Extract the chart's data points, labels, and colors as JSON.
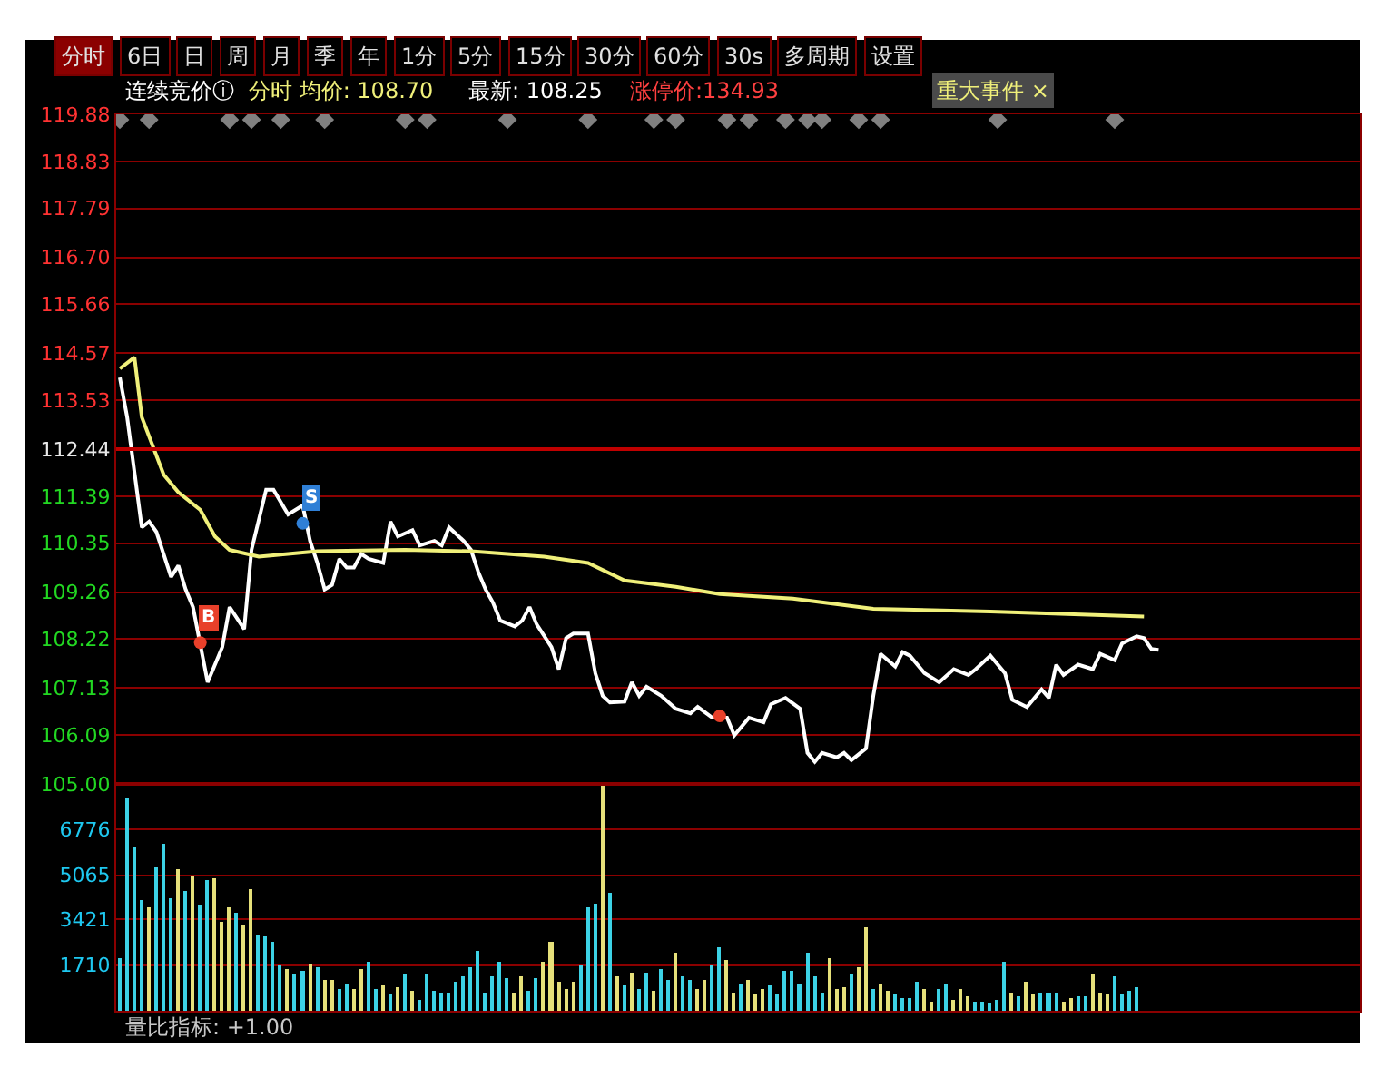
{
  "chart_data": [
    {
      "type": "other",
      "annotations": [
        "分时",
        "6日",
        "日",
        "周",
        "月",
        "季",
        "年",
        "1分",
        "5分",
        "15分",
        "30分",
        "60分",
        "30s",
        "多周期",
        "设置"
      ]
    },
    {
      "type": "line",
      "tick_labels": "y",
      "grid": "y",
      "annotations": [
        "连续竞价ⓘ",
        "分时 均价: 108.70",
        "最新: 108.25",
        "涨停价:134.93",
        "重大事件 ×"
      ],
      "categories": [
        null,
        null,
        null,
        null,
        null,
        null,
        null,
        null,
        null,
        null,
        null,
        null,
        null,
        null,
        null,
        null,
        null,
        null,
        null,
        null,
        null,
        null,
        null,
        null,
        null,
        null,
        null,
        null,
        null,
        null,
        null,
        null,
        null,
        null,
        null,
        null,
        null,
        null,
        null,
        null,
        null,
        null,
        null,
        null,
        null,
        null,
        null,
        null,
        null,
        null,
        null,
        null,
        null,
        null,
        null,
        null,
        null,
        null,
        null,
        null,
        null,
        null,
        null,
        null,
        null,
        null,
        null,
        null,
        null,
        null,
        null,
        null,
        null,
        null,
        null,
        null,
        null,
        null,
        null,
        null,
        null,
        null,
        null,
        null,
        null,
        null,
        null,
        null,
        null,
        null,
        null,
        null,
        null,
        null,
        null,
        null,
        null,
        null,
        null,
        null,
        null,
        null,
        null,
        null,
        null,
        null,
        null,
        null,
        null,
        null,
        null,
        null,
        null,
        null,
        null,
        null,
        null,
        null,
        null,
        null,
        null,
        null,
        null,
        null,
        null,
        null,
        null,
        null,
        null,
        null,
        null,
        null,
        null,
        null,
        null,
        null,
        null,
        null,
        null,
        null,
        null,
        null,
        null,
        null,
        null,
        null,
        null,
        null,
        null,
        null,
        null,
        null,
        null,
        null,
        null,
        null,
        null,
        null,
        null,
        null,
        null,
        null,
        null,
        null,
        null,
        null,
        null,
        null,
        null,
        null
      ],
      "ylim": [
        105.0,
        119.88
      ],
      "yticks": [
        119.88,
        118.83,
        117.79,
        {
          "value": 116.7,
          "label": "116.70"
        },
        115.66,
        114.57,
        113.53,
        112.44,
        111.39,
        110.35,
        109.26,
        108.22,
        107.13,
        106.09,
        {
          "value": 105.0,
          "label": "105.00"
        }
      ],
      "ref_lines": [
        {
          "axis": "y",
          "value": 112.44,
          "color": "#c00000"
        }
      ],
      "series": [
        {
          "type": "line",
          "color": "#ffffff",
          "values": [
            114.03,
            113.15,
            null,
            110.7,
            110.83,
            110.6,
            null,
            109.6,
            109.85,
            109.32,
            108.93,
            null,
            107.26,
            null,
            108.04,
            108.93,
            null,
            108.44,
            110.2,
            null,
            111.54,
            111.54,
            null,
            110.99,
            null,
            111.19,
            110.4,
            109.91,
            109.32,
            109.42,
            110.0,
            109.81,
            109.81,
            110.11,
            110.0,
            null,
            109.91,
            110.83,
            110.5,
            null,
            110.64,
            110.3,
            null,
            110.4,
            110.3,
            110.7,
            null,
            110.4,
            110.2,
            109.71,
            109.32,
            109.03,
            108.63,
            null,
            108.5,
            108.63,
            108.93,
            108.54,
            null,
            108.04,
            107.55,
            108.24,
            108.34,
            null,
            108.34,
            107.46,
            106.96,
            106.81,
            null,
            106.83,
            107.26,
            106.96,
            107.16,
            null,
            106.96,
            null,
            106.67,
            null,
            106.57,
            106.71,
            null,
            106.47,
            null,
            106.47,
            106.08,
            null,
            106.47,
            null,
            106.37,
            106.77,
            null,
            106.91,
            null,
            106.67,
            105.69,
            105.49,
            105.69,
            null,
            105.59,
            105.69,
            105.53,
            null,
            105.79,
            106.96,
            107.89,
            null,
            107.61,
            107.93,
            107.85,
            null,
            107.46,
            null,
            107.26,
            null,
            107.55,
            null,
            107.42,
            107.55,
            null,
            107.85,
            null,
            107.46,
            106.87,
            null,
            106.71,
            null,
            107.1,
            106.91,
            107.65,
            107.42,
            null,
            107.65,
            null,
            107.55,
            107.89,
            null,
            107.75,
            108.12,
            null,
            108.28,
            108.24,
            108.0,
            107.98,
            null,
            null,
            null,
            null,
            null,
            null,
            null,
            null,
            null,
            null,
            null,
            null,
            null,
            null,
            null,
            null,
            null,
            null,
            null,
            null,
            null,
            null,
            null,
            null,
            null,
            null,
            null
          ]
        },
        {
          "type": "line",
          "color": "#f0f07a",
          "values": [
            114.23,
            null,
            114.48,
            113.15,
            null,
            null,
            111.87,
            null,
            111.48,
            null,
            null,
            111.09,
            null,
            110.5,
            null,
            110.2,
            null,
            null,
            null,
            110.05,
            null,
            null,
            null,
            null,
            null,
            null,
            null,
            110.17,
            null,
            null,
            null,
            null,
            null,
            null,
            null,
            null,
            null,
            null,
            null,
            110.2,
            null,
            null,
            null,
            null,
            null,
            null,
            null,
            null,
            110.17,
            null,
            null,
            null,
            null,
            null,
            null,
            null,
            null,
            null,
            110.05,
            null,
            null,
            null,
            null,
            null,
            109.91,
            null,
            null,
            null,
            null,
            109.52,
            null,
            null,
            null,
            null,
            null,
            null,
            109.38,
            null,
            null,
            null,
            null,
            null,
            109.22,
            null,
            null,
            null,
            null,
            null,
            null,
            null,
            null,
            null,
            109.12,
            null,
            null,
            null,
            null,
            null,
            null,
            null,
            null,
            null,
            null,
            108.89,
            null,
            null,
            null,
            null,
            null,
            null,
            null,
            null,
            null,
            null,
            null,
            null,
            null,
            null,
            null,
            108.83,
            null,
            null,
            null,
            null,
            null,
            null,
            null,
            null,
            null,
            null,
            null,
            null,
            null,
            null,
            null,
            null,
            null,
            null,
            null,
            null,
            108.72,
            null,
            null,
            null,
            null,
            null,
            null,
            null,
            null,
            null,
            null,
            null,
            null,
            null,
            null,
            null,
            null,
            null,
            null,
            null,
            null,
            null,
            null,
            null,
            null,
            null,
            null,
            null,
            null,
            null
          ]
        },
        {
          "type": "scatter",
          "marker": "diamond",
          "color": "#808080",
          "values": [
            119.76,
            null,
            null,
            null,
            119.76,
            null,
            null,
            null,
            null,
            null,
            null,
            null,
            null,
            null,
            null,
            119.76,
            null,
            null,
            119.76,
            null,
            null,
            null,
            119.76,
            null,
            null,
            null,
            null,
            null,
            119.76,
            null,
            null,
            null,
            null,
            null,
            null,
            null,
            null,
            null,
            null,
            119.76,
            null,
            null,
            119.76,
            null,
            null,
            null,
            null,
            null,
            null,
            null,
            null,
            null,
            null,
            119.76,
            null,
            null,
            null,
            null,
            null,
            null,
            null,
            null,
            null,
            null,
            119.76,
            null,
            null,
            null,
            null,
            null,
            null,
            null,
            null,
            119.76,
            null,
            null,
            119.76,
            null,
            null,
            null,
            null,
            null,
            null,
            119.76,
            null,
            null,
            119.76,
            null,
            null,
            null,
            null,
            119.76,
            null,
            null,
            119.76,
            null,
            119.76,
            null,
            null,
            null,
            null,
            119.76,
            null,
            null,
            119.76,
            null,
            null,
            null,
            null,
            null,
            null,
            null,
            null,
            null,
            null,
            null,
            null,
            null,
            null,
            null,
            119.76,
            null,
            null,
            null,
            null,
            null,
            null,
            null,
            null,
            null,
            null,
            null,
            null,
            null,
            null,
            null,
            119.76,
            null,
            null,
            null,
            null,
            null,
            null,
            null,
            null,
            null,
            null,
            null,
            null,
            null,
            null,
            null,
            null,
            null,
            null,
            null,
            null,
            null,
            null,
            null,
            null,
            null,
            null,
            null,
            null,
            null,
            null,
            null,
            null,
            null
          ]
        },
        {
          "type": "scatter",
          "marker": "circle",
          "color": "#e8402a",
          "values": [
            null,
            null,
            null,
            null,
            null,
            null,
            null,
            null,
            null,
            null,
            null,
            108.14,
            null,
            null,
            null,
            null,
            null,
            null,
            null,
            null,
            null,
            null,
            null,
            null,
            null,
            null,
            null,
            null,
            null,
            null,
            null,
            null,
            null,
            null,
            null,
            null,
            null,
            null,
            null,
            null,
            null,
            null,
            null,
            null,
            null,
            null,
            null,
            null,
            null,
            null,
            null,
            null,
            null,
            null,
            null,
            null,
            null,
            null,
            null,
            null,
            null,
            null,
            null,
            null,
            null,
            null,
            null,
            null,
            null,
            null,
            null,
            null,
            null,
            null,
            null,
            null,
            null,
            null,
            null,
            null,
            null,
            null,
            null,
            null,
            null,
            null,
            null,
            null,
            null,
            null,
            null,
            null,
            null,
            null,
            null,
            null,
            null,
            null,
            null,
            null,
            null,
            null,
            null,
            null,
            null,
            null,
            null,
            null,
            null,
            null,
            null,
            null,
            null,
            null,
            null,
            null,
            null,
            null,
            null,
            null,
            null,
            null,
            null,
            null,
            null,
            null,
            null,
            null,
            null,
            null,
            null,
            null,
            null,
            null,
            null,
            null,
            null,
            null,
            null,
            null,
            null,
            null,
            null,
            null,
            null,
            null,
            null,
            null,
            null,
            null,
            null,
            null,
            null,
            null,
            null,
            null,
            null,
            null,
            null,
            null,
            null,
            null,
            null,
            null,
            null,
            null,
            null,
            null,
            null,
            null
          ],
          "value_labels": [
            null,
            null,
            null,
            null,
            null,
            null,
            null,
            null,
            null,
            null,
            null,
            "B",
            null,
            null,
            null,
            null,
            null,
            null,
            null,
            null,
            null,
            null,
            null,
            null,
            null,
            null,
            null,
            null,
            null,
            null,
            null,
            null,
            null,
            null,
            null,
            null,
            null,
            null,
            null,
            null,
            null,
            null,
            null,
            null,
            null,
            null,
            null,
            null,
            null,
            null,
            null,
            null,
            null,
            null,
            null,
            null,
            null,
            null,
            null,
            null,
            null,
            null,
            null,
            null,
            null,
            null,
            null,
            null,
            null,
            null,
            null,
            null,
            null,
            null,
            null,
            null,
            null,
            null,
            null,
            null,
            null,
            null,
            null,
            null,
            null,
            null,
            null,
            null,
            null,
            null,
            null,
            null,
            null,
            null,
            null,
            null,
            null,
            null,
            null,
            null,
            null,
            null,
            null,
            null,
            null,
            null,
            null,
            null,
            null,
            null,
            null,
            null,
            null,
            null,
            null,
            null,
            null,
            null,
            null,
            null,
            null,
            null,
            null,
            null,
            null,
            null,
            null,
            null,
            null,
            null,
            null,
            null,
            null,
            null,
            null,
            null,
            null,
            null,
            null,
            null,
            null,
            null,
            null,
            null,
            null,
            null,
            null,
            null,
            null,
            null,
            null,
            null,
            null,
            null,
            null,
            null,
            null,
            null,
            null,
            null,
            null,
            null,
            null,
            null,
            null,
            null,
            null,
            null,
            null,
            null
          ]
        },
        {
          "type": "scatter",
          "marker": "circle",
          "color": "#2f7fd6",
          "values": [
            null,
            null,
            null,
            null,
            null,
            null,
            null,
            null,
            null,
            null,
            null,
            null,
            null,
            null,
            null,
            null,
            null,
            null,
            null,
            null,
            null,
            null,
            null,
            null,
            null,
            110.79,
            null,
            null,
            null,
            null,
            null,
            null,
            null,
            null,
            null,
            null,
            null,
            null,
            null,
            null,
            null,
            null,
            null,
            null,
            null,
            null,
            null,
            null,
            null,
            null,
            null,
            null,
            null,
            null,
            null,
            null,
            null,
            null,
            null,
            null,
            null,
            null,
            null,
            null,
            null,
            null,
            null,
            null,
            null,
            null,
            null,
            null,
            null,
            null,
            null,
            null,
            null,
            null,
            null,
            null,
            null,
            null,
            null,
            null,
            null,
            null,
            null,
            null,
            null,
            null,
            null,
            null,
            null,
            null,
            null,
            null,
            null,
            null,
            null,
            null,
            null,
            null,
            null,
            null,
            null,
            null,
            null,
            null,
            null,
            null,
            null,
            null,
            null,
            null,
            null,
            null,
            null,
            null,
            null,
            null,
            null,
            null,
            null,
            null,
            null,
            null,
            null,
            null,
            null,
            null,
            null,
            null,
            null,
            null,
            null,
            null,
            null,
            null,
            null,
            null,
            null,
            null,
            null,
            null,
            null,
            null,
            null,
            null,
            null,
            null,
            null,
            null,
            null,
            null,
            null,
            null,
            null,
            null,
            null,
            null,
            null,
            null,
            null,
            null,
            null,
            null,
            null,
            null,
            null,
            null
          ],
          "value_labels": [
            null,
            null,
            null,
            null,
            null,
            null,
            null,
            null,
            null,
            null,
            null,
            null,
            null,
            null,
            null,
            null,
            null,
            null,
            null,
            null,
            null,
            null,
            null,
            null,
            null,
            "S",
            null,
            null,
            null,
            null,
            null,
            null,
            null,
            null,
            null,
            null,
            null,
            null,
            null,
            null,
            null,
            null,
            null,
            null,
            null,
            null,
            null,
            null,
            null,
            null,
            null,
            null,
            null,
            null,
            null,
            null,
            null,
            null,
            null,
            null,
            null,
            null,
            null,
            null,
            null,
            null,
            null,
            null,
            null,
            null,
            null,
            null,
            null,
            null,
            null,
            null,
            null,
            null,
            null,
            null,
            null,
            null,
            null,
            null,
            null,
            null,
            null,
            null,
            null,
            null,
            null,
            null,
            null,
            null,
            null,
            null,
            null,
            null,
            null,
            null,
            null,
            null,
            null,
            null,
            null,
            null,
            null,
            null,
            null,
            null,
            null,
            null,
            null,
            null,
            null,
            null,
            null,
            null,
            null,
            null,
            null,
            null,
            null,
            null,
            null,
            null,
            null,
            null,
            null,
            null,
            null,
            null,
            null,
            null,
            null,
            null,
            null,
            null,
            null,
            null,
            null,
            null,
            null,
            null,
            null,
            null,
            null,
            null,
            null,
            null,
            null,
            null,
            null,
            null,
            null,
            null,
            null,
            null,
            null,
            null,
            null,
            null,
            null,
            null,
            null,
            null,
            null,
            null,
            null,
            null
          ]
        },
        {
          "type": "scatter",
          "marker": "circle",
          "color": "#e8402a",
          "values": [
            null,
            null,
            null,
            null,
            null,
            null,
            null,
            null,
            null,
            null,
            null,
            null,
            null,
            null,
            null,
            null,
            null,
            null,
            null,
            null,
            null,
            null,
            null,
            null,
            null,
            null,
            null,
            null,
            null,
            null,
            null,
            null,
            null,
            null,
            null,
            null,
            null,
            null,
            null,
            null,
            null,
            null,
            null,
            null,
            null,
            null,
            null,
            null,
            null,
            null,
            null,
            null,
            null,
            null,
            null,
            null,
            null,
            null,
            null,
            null,
            null,
            null,
            null,
            null,
            null,
            null,
            null,
            null,
            null,
            null,
            null,
            null,
            null,
            null,
            null,
            null,
            null,
            null,
            null,
            null,
            null,
            null,
            106.51,
            null,
            null,
            null,
            null,
            null,
            null,
            null,
            null,
            null,
            null,
            null,
            null,
            null,
            null,
            null,
            null,
            null,
            null,
            null,
            null,
            null,
            null,
            null,
            null,
            null,
            null,
            null,
            null,
            null,
            null,
            null,
            null,
            null,
            null,
            null,
            null,
            null,
            null,
            null,
            null,
            null,
            null,
            null,
            null,
            null,
            null,
            null,
            null,
            null,
            null,
            null,
            null,
            null,
            null,
            null,
            null,
            null,
            null,
            null,
            null,
            null,
            null,
            null,
            null,
            null,
            null,
            null,
            null,
            null,
            null,
            null,
            null,
            null,
            null,
            null,
            null,
            null,
            null,
            null,
            null,
            null,
            null,
            null,
            null,
            null,
            null,
            null
          ]
        }
      ]
    },
    {
      "type": "bar",
      "tick_labels": "y",
      "grid": "y",
      "annotations": [
        "量比指标: +1.00"
      ],
      "categories": [
        null,
        null,
        null,
        null,
        null,
        null,
        null,
        null,
        null,
        null,
        null,
        null,
        null,
        null,
        null,
        null,
        null,
        null,
        null,
        null,
        null,
        null,
        null,
        null,
        null,
        null,
        null,
        null,
        null,
        null,
        null,
        null,
        null,
        null,
        null,
        null,
        null,
        null,
        null,
        null,
        null,
        null,
        null,
        null,
        null,
        null,
        null,
        null,
        null,
        null,
        null,
        null,
        null,
        null,
        null,
        null,
        null,
        null,
        null,
        null,
        null,
        null,
        null,
        null,
        null,
        null,
        null,
        null,
        null,
        null,
        null,
        null,
        null,
        null,
        null,
        null,
        null,
        null,
        null,
        null,
        null,
        null,
        null,
        null,
        null,
        null,
        null,
        null,
        null,
        null,
        null,
        null,
        null,
        null,
        null,
        null,
        null,
        null,
        null,
        null,
        null,
        null,
        null,
        null,
        null,
        null,
        null,
        null,
        null,
        null,
        null,
        null,
        null,
        null,
        null,
        null,
        null,
        null,
        null,
        null,
        null,
        null,
        null,
        null,
        null,
        null,
        null,
        null,
        null,
        null,
        null,
        null,
        null,
        null,
        null,
        null,
        null,
        null,
        null,
        null,
        null,
        null,
        null,
        null,
        null,
        null,
        null,
        null,
        null,
        null,
        null,
        null,
        null,
        null,
        null,
        null,
        null,
        null,
        null,
        null,
        null,
        null,
        null,
        null,
        null,
        null,
        null,
        null,
        null,
        null
      ],
      "ylim": [
        0,
        8480
      ],
      "yticks": [
        1710,
        3421,
        5065,
        6776
      ],
      "values": [
        1940,
        7970,
        6100,
        4120,
        3850,
        5390,
        6230,
        4220,
        5260,
        4490,
        4990,
        3950,
        4860,
        4920,
        3350,
        3890,
        3690,
        3220,
        4560,
        2880,
        2810,
        2580,
        1710,
        1580,
        1340,
        1510,
        1740,
        1610,
        1140,
        1140,
        800,
        1010,
        840,
        1580,
        1840,
        800,
        940,
        600,
        870,
        1340,
        740,
        440,
        1340,
        770,
        700,
        670,
        1070,
        1310,
        1610,
        2250,
        670,
        1270,
        1840,
        1240,
        670,
        1270,
        740,
        1240,
        1840,
        2580,
        1070,
        840,
        1070,
        1710,
        3890,
        4020,
        8400,
        4390,
        1270,
        940,
        1440,
        840,
        1410,
        740,
        1540,
        1170,
        2180,
        1270,
        1170,
        840,
        1140,
        1710,
        2380,
        1910,
        670,
        1010,
        1140,
        600,
        800,
        940,
        600,
        1470,
        1470,
        1010,
        2180,
        1270,
        670,
        1940,
        800,
        870,
        1370,
        1610,
        3150,
        800,
        1010,
        770,
        600,
        500,
        470,
        1070,
        840,
        340,
        840,
        1040,
        400,
        840,
        540,
        370,
        340,
        270,
        400,
        1840,
        700,
        570,
        1070,
        600,
        670,
        670,
        670,
        340,
        470,
        540,
        540,
        1340,
        670,
        600,
        1270,
        600,
        740,
        870,
        null,
        null,
        null,
        null,
        null,
        null,
        null,
        null,
        null,
        null,
        null,
        null,
        null,
        null,
        null,
        null,
        null,
        null,
        null,
        null,
        null,
        null,
        null,
        null,
        null,
        null,
        null,
        null,
        null,
        null
      ],
      "colors": [
        "#3cd2e6",
        "#3cd2e6",
        "#3cd2e6",
        "#3cd2e6",
        "#e6e07a",
        "#3cd2e6",
        "#3cd2e6",
        "#3cd2e6",
        "#e6e07a",
        "#3cd2e6",
        "#e6e07a",
        "#3cd2e6",
        "#3cd2e6",
        "#e6e07a",
        "#e6e07a",
        "#e6e07a",
        "#3cd2e6",
        "#e6e07a",
        "#e6e07a",
        "#3cd2e6",
        "#3cd2e6",
        "#3cd2e6",
        "#3cd2e6",
        "#e6e07a",
        "#3cd2e6",
        "#3cd2e6",
        "#e6e07a",
        "#3cd2e6",
        "#e6e07a",
        "#e6e07a",
        "#3cd2e6",
        "#3cd2e6",
        "#e6e07a",
        "#e6e07a",
        "#3cd2e6",
        "#3cd2e6",
        "#e6e07a",
        "#3cd2e6",
        "#e6e07a",
        "#3cd2e6",
        "#e6e07a",
        "#3cd2e6",
        "#3cd2e6",
        "#3cd2e6",
        "#3cd2e6",
        "#3cd2e6",
        "#3cd2e6",
        "#3cd2e6",
        "#3cd2e6",
        "#3cd2e6",
        "#3cd2e6",
        "#3cd2e6",
        "#3cd2e6",
        "#3cd2e6",
        "#e6e07a",
        "#e6e07a",
        "#3cd2e6",
        "#3cd2e6",
        "#e6e07a",
        "#e6e07a",
        "#e6e07a",
        "#e6e07a",
        "#e6e07a",
        "#3cd2e6",
        "#3cd2e6",
        "#3cd2e6",
        "#e6e07a",
        "#3cd2e6",
        "#e6e07a",
        "#3cd2e6",
        "#e6e07a",
        "#3cd2e6",
        "#3cd2e6",
        "#e6e07a",
        "#3cd2e6",
        "#3cd2e6",
        "#e6e07a",
        "#3cd2e6",
        "#3cd2e6",
        "#e6e07a",
        "#e6e07a",
        "#3cd2e6",
        "#3cd2e6",
        "#e6e07a",
        "#e6e07a",
        "#3cd2e6",
        "#e6e07a",
        "#e6e07a",
        "#e6e07a",
        "#3cd2e6",
        "#3cd2e6",
        "#3cd2e6",
        "#3cd2e6",
        "#3cd2e6",
        "#3cd2e6",
        "#3cd2e6",
        "#3cd2e6",
        "#e6e07a",
        "#e6e07a",
        "#e6e07a",
        "#3cd2e6",
        "#e6e07a",
        "#e6e07a",
        "#3cd2e6",
        "#e6e07a",
        "#e6e07a",
        "#3cd2e6",
        "#3cd2e6",
        "#3cd2e6",
        "#3cd2e6",
        "#e6e07a",
        "#e6e07a",
        "#3cd2e6",
        "#3cd2e6",
        "#e6e07a",
        "#e6e07a",
        "#e6e07a",
        "#3cd2e6",
        "#3cd2e6",
        "#3cd2e6",
        "#3cd2e6",
        "#3cd2e6",
        "#e6e07a",
        "#3cd2e6",
        "#e6e07a",
        "#e6e07a",
        "#3cd2e6",
        "#3cd2e6",
        "#3cd2e6",
        "#e6e07a",
        "#e6e07a",
        "#3cd2e6",
        "#3cd2e6",
        "#e6e07a",
        "#e6e07a",
        "#e6e07a",
        "#3cd2e6",
        "#3cd2e6",
        "#3cd2e6",
        "#3cd2e6",
        null,
        null,
        null,
        null,
        null,
        null,
        null,
        null,
        null,
        null,
        null,
        null,
        null,
        null,
        null,
        null,
        null,
        null,
        null,
        null,
        null,
        null,
        null,
        null,
        null,
        null,
        null,
        null,
        null,
        null
      ]
    }
  ]
}
